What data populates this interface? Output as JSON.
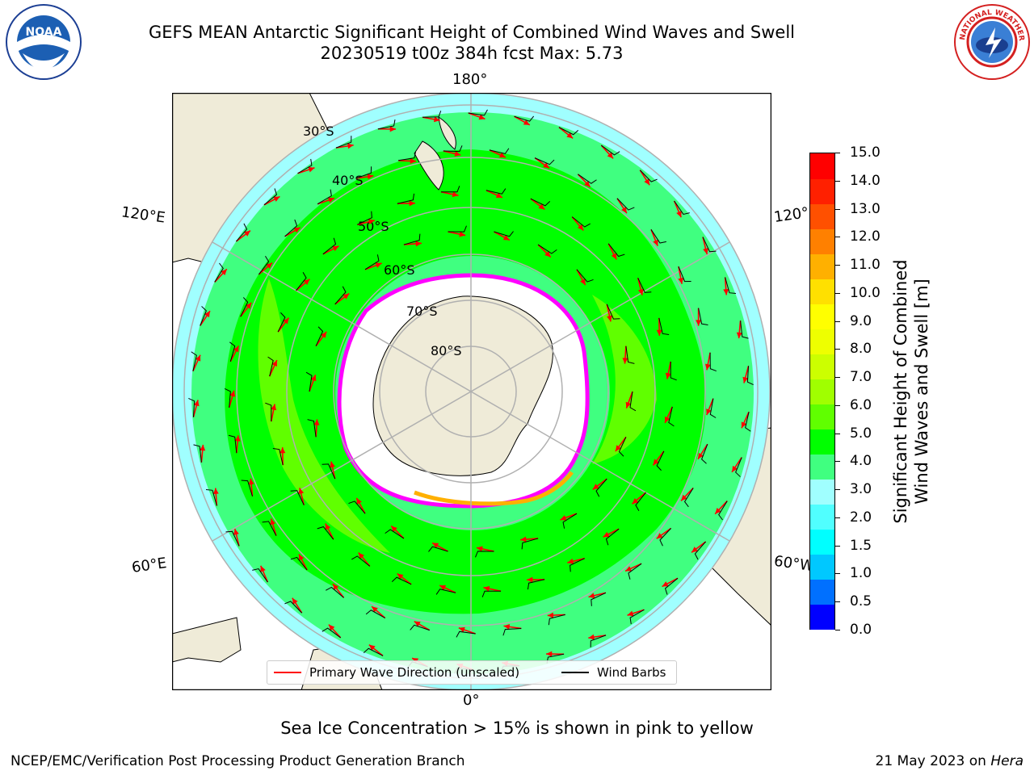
{
  "header": {
    "title": "GEFS MEAN Antarctic Significant Height of Combined Wind Waves and Swell",
    "subtitle": "20230519 t00z 384h fcst   Max: 5.73"
  },
  "logos": {
    "left": "noaa-logo",
    "right": "national-weather-service-logo",
    "left_text": "NOAA",
    "right_text": "NATIONAL WEATHER SERVICE"
  },
  "map": {
    "projection": "south-polar-stereographic",
    "lon_labels": [
      "180°",
      "120°E",
      "120°",
      "60°E",
      "60°W",
      "0°"
    ],
    "lat_labels": [
      "30°S",
      "40°S",
      "50°S",
      "60°S",
      "70°S",
      "80°S"
    ],
    "colors": {
      "land": "#efebd8",
      "coast": "#000000",
      "grid": "#b0b0b0",
      "arrow": "#ff0000",
      "barb": "#000000",
      "ice_edge": "#ff00ff"
    }
  },
  "legend": {
    "items": [
      {
        "label": "Primary Wave Direction (unscaled)",
        "color": "#ff0000"
      },
      {
        "label": "Wind Barbs",
        "color": "#000000"
      }
    ]
  },
  "colorbar": {
    "label_line1": "Significant Height of Combined",
    "label_line2": "Wind Waves and Swell [m]",
    "ticks": [
      "15.0",
      "14.0",
      "13.0",
      "12.0",
      "11.0",
      "10.0",
      "9.0",
      "8.0",
      "7.0",
      "6.0",
      "5.0",
      "4.0",
      "3.0",
      "2.0",
      "1.5",
      "1.0",
      "0.5",
      "0.0"
    ],
    "colors": [
      "#0000ff",
      "#0070ff",
      "#00c8ff",
      "#00ffff",
      "#50ffff",
      "#a0ffff",
      "#40ff80",
      "#00ff00",
      "#60ff00",
      "#a0ff00",
      "#ccff00",
      "#eeff00",
      "#ffff00",
      "#ffe000",
      "#ffb000",
      "#ff8000",
      "#ff5000",
      "#ff2000",
      "#ff0000"
    ]
  },
  "caption": "Sea Ice Concentration > 15% is shown in pink to yellow",
  "footer": {
    "left": "NCEP/EMC/Verification Post Processing Product Generation Branch",
    "right_date": "21 May 2023 on ",
    "right_host": "Hera"
  }
}
